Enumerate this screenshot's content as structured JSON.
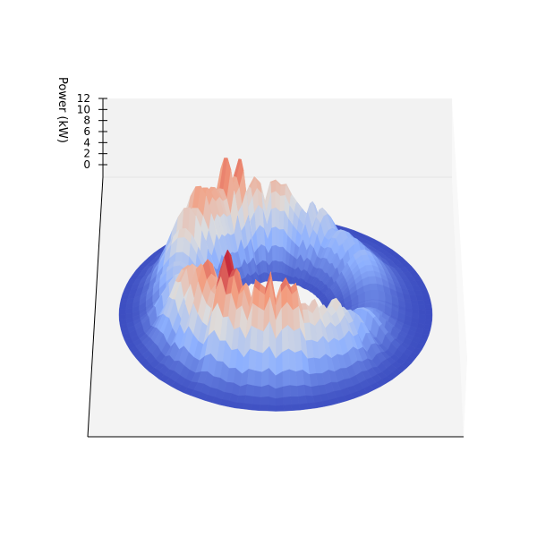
{
  "chart_data": {
    "type": "surface3d",
    "title": "",
    "xlabel": "",
    "ylabel": "",
    "zlabel": "Power (kW)",
    "zlim": [
      0,
      12
    ],
    "z_ticks": [
      {
        "value": 0,
        "label": "0"
      },
      {
        "value": 2,
        "label": "2"
      },
      {
        "value": 4,
        "label": "4"
      },
      {
        "value": 6,
        "label": "6"
      },
      {
        "value": 8,
        "label": "8"
      },
      {
        "value": 10,
        "label": "10"
      },
      {
        "value": 12,
        "label": "12"
      }
    ],
    "colormap": "coolwarm",
    "colormap_stops": [
      "#3b4cc0",
      "#8db0fe",
      "#dddddd",
      "#f49a7b",
      "#b40426"
    ],
    "surface": "toroidal ring; azimuthal angle = time of day, radial distance = day index, height = power",
    "ring_profile": {
      "angle_deg": [
        0,
        30,
        60,
        90,
        120,
        150,
        180,
        210,
        240,
        270,
        300,
        330
      ],
      "peak_power_kw": [
        1.5,
        3.0,
        6.5,
        9.5,
        10.0,
        7.0,
        4.0,
        7.5,
        9.0,
        7.0,
        4.5,
        3.0
      ]
    },
    "grid": true,
    "legend": "none"
  }
}
